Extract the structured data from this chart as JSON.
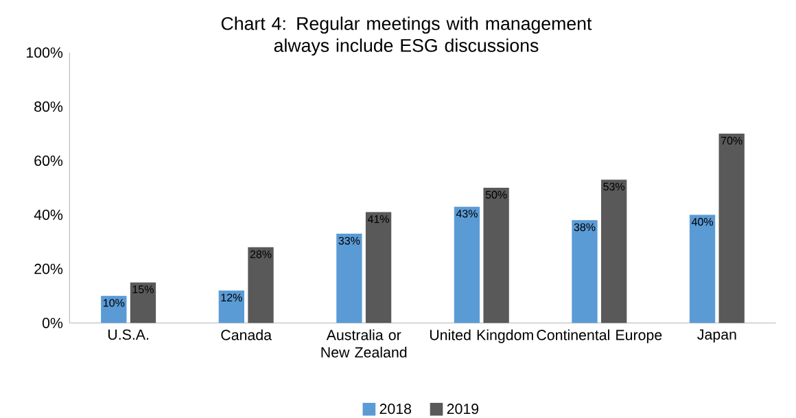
{
  "chart_data": {
    "type": "bar",
    "title": "Chart 4: Regular meetings with management always include ESG discussions",
    "categories": [
      "U.S.A.",
      "Canada",
      "Australia or New Zealand",
      "United Kingdom",
      "Continental Europe",
      "Japan"
    ],
    "series": [
      {
        "name": "2018",
        "color": "#5b9bd5",
        "values": [
          10,
          12,
          33,
          43,
          38,
          40
        ],
        "value_labels": [
          "10%",
          "12%",
          "33%",
          "43%",
          "38%",
          "40%"
        ]
      },
      {
        "name": "2019",
        "color": "#595959",
        "values": [
          15,
          28,
          41,
          50,
          53,
          70
        ],
        "value_labels": [
          "15%",
          "28%",
          "41%",
          "50%",
          "53%",
          "70%"
        ]
      }
    ],
    "ylim": [
      0,
      100
    ],
    "yticks": [
      {
        "value": 0,
        "label": "0%"
      },
      {
        "value": 20,
        "label": "20%"
      },
      {
        "value": 40,
        "label": "40%"
      },
      {
        "value": 60,
        "label": "60%"
      },
      {
        "value": 80,
        "label": "80%"
      },
      {
        "value": 100,
        "label": "100%"
      }
    ],
    "legend": "bottom"
  }
}
